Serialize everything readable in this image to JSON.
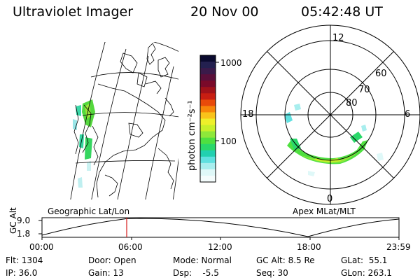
{
  "header": {
    "app_title": "Ultraviolet Imager",
    "date": "20 Nov 00",
    "time": "05:42:48 UT"
  },
  "colorbar": {
    "unit_label": "photon cm⁻²s⁻¹",
    "tick_labels": [
      "1000",
      "100"
    ],
    "colors": [
      "#0a0a2e",
      "#23204f",
      "#3a1a4a",
      "#5a0f3a",
      "#7a0a2a",
      "#a0121a",
      "#c81e12",
      "#e84a0a",
      "#f7860a",
      "#f9c31a",
      "#eef02a",
      "#c8f02a",
      "#8ee83a",
      "#4fe040",
      "#2ad86a",
      "#22d0b0",
      "#60e0e0",
      "#a8eeee",
      "#dff8f8",
      "#f4fcfc"
    ]
  },
  "map_labels": {
    "left": "Geographic Lat/Lon",
    "right": "Apex MLat/MLT"
  },
  "polar": {
    "mlt_labels": {
      "top": "12",
      "left": "18",
      "right": "6",
      "bottom": "0"
    },
    "lat_labels": [
      "60",
      "70",
      "80"
    ]
  },
  "altitude_plot": {
    "y_title": "GC Alt",
    "y_ticks": [
      "9.0",
      "1.8"
    ],
    "x_ticks": [
      "00:00",
      "06:00",
      "12:00",
      "18:00",
      "23:59"
    ],
    "marker_color": "#d41a1a"
  },
  "footer": {
    "col1": {
      "line1": "Flt: 1304",
      "line2": "IP: 36.0"
    },
    "col2": {
      "line1": "Door: Open",
      "line2": "Gain: 13"
    },
    "col3": {
      "line1": "Mode: Normal",
      "line2": "Dsp:    -5.5"
    },
    "col4": {
      "line1": "GC Alt: 8.5 Re",
      "line2": "Seq: 30"
    },
    "col5": {
      "line1": "GLat:  55.1",
      "line2": "GLon: 263.1"
    }
  }
}
